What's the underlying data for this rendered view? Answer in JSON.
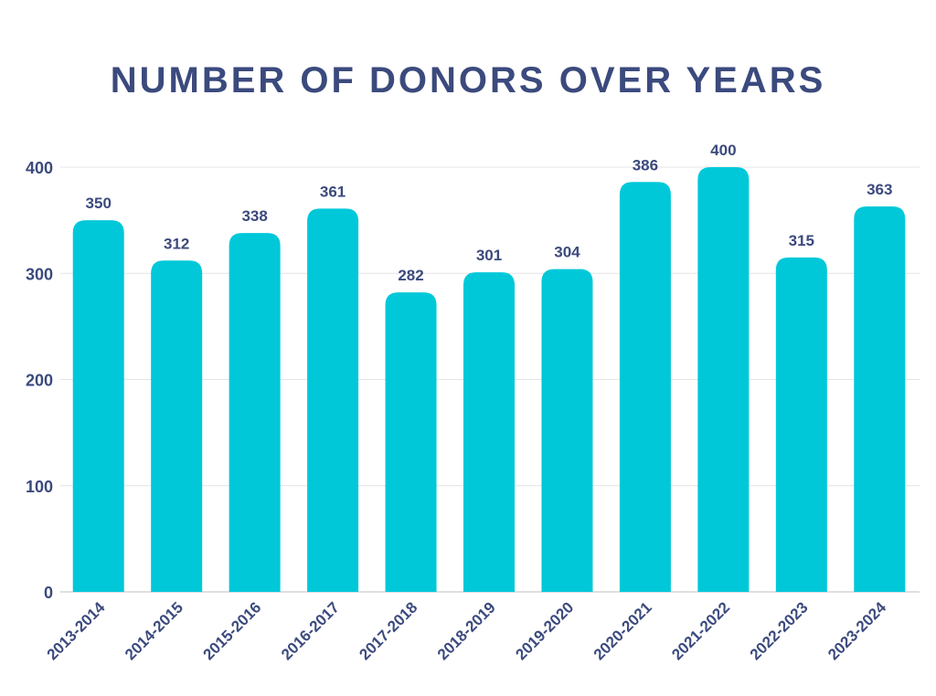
{
  "chart_data": {
    "type": "bar",
    "title": "NUMBER OF DONORS OVER YEARS",
    "xlabel": "",
    "ylabel": "",
    "categories": [
      "2013-2014",
      "2014-2015",
      "2015-2016",
      "2016-2017",
      "2017-2018",
      "2018-2019",
      "2019-2020",
      "2020-2021",
      "2021-2022",
      "2022-2023",
      "2023-2024"
    ],
    "values": [
      350,
      312,
      338,
      361,
      282,
      301,
      304,
      386,
      400,
      315,
      363
    ],
    "ylim": [
      0,
      400
    ],
    "yticks": [
      0,
      100,
      200,
      300,
      400
    ],
    "grid": true,
    "legend": "none",
    "colors": {
      "bar": "#00c8d9",
      "text": "#3b4a7d",
      "grid": "#e4e4e4",
      "axis": "#bfbfbf"
    }
  }
}
